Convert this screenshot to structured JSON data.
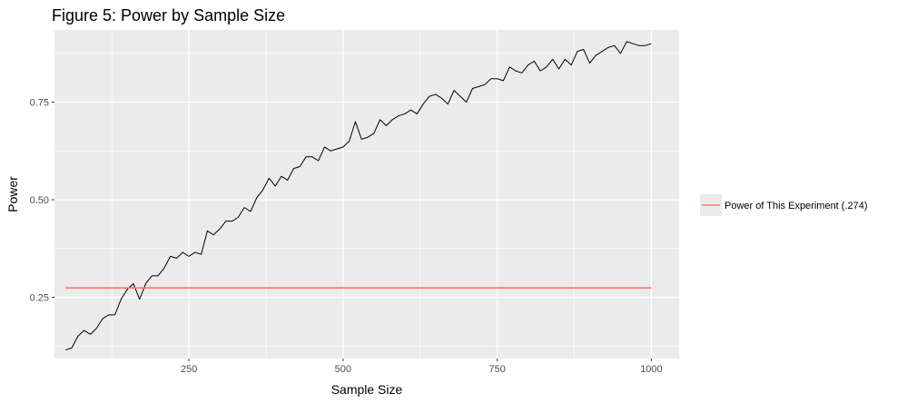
{
  "chart_data": {
    "type": "line",
    "title": "Figure 5: Power by Sample Size",
    "xlabel": "Sample Size",
    "ylabel": "Power",
    "xlim": [
      32,
      1045
    ],
    "ylim": [
      0.093,
      0.935
    ],
    "x_ticks": [
      250,
      500,
      750,
      1000
    ],
    "x_tick_labels": [
      "250",
      "500",
      "750",
      "1000"
    ],
    "y_ticks": [
      0.25,
      0.5,
      0.75
    ],
    "y_tick_labels": [
      "0.25",
      "0.50",
      "0.75"
    ],
    "grid": true,
    "legend_position": "right",
    "series": [
      {
        "color": "#000000",
        "x": [
          50,
          60,
          70,
          80,
          90,
          100,
          110,
          120,
          130,
          140,
          150,
          160,
          170,
          180,
          190,
          200,
          210,
          220,
          230,
          240,
          250,
          260,
          270,
          280,
          290,
          300,
          310,
          320,
          330,
          340,
          350,
          360,
          370,
          380,
          390,
          400,
          410,
          420,
          430,
          440,
          450,
          460,
          470,
          480,
          490,
          500,
          510,
          520,
          530,
          540,
          550,
          560,
          570,
          580,
          590,
          600,
          610,
          620,
          630,
          640,
          650,
          660,
          670,
          680,
          690,
          700,
          710,
          720,
          730,
          740,
          750,
          760,
          770,
          780,
          790,
          800,
          810,
          820,
          830,
          840,
          850,
          860,
          870,
          880,
          890,
          900,
          910,
          920,
          930,
          940,
          950,
          960,
          970,
          980,
          990,
          1000
        ],
        "values": [
          0.115,
          0.12,
          0.15,
          0.165,
          0.155,
          0.17,
          0.195,
          0.205,
          0.205,
          0.245,
          0.27,
          0.285,
          0.245,
          0.285,
          0.305,
          0.305,
          0.325,
          0.355,
          0.35,
          0.365,
          0.355,
          0.365,
          0.36,
          0.42,
          0.41,
          0.425,
          0.445,
          0.445,
          0.455,
          0.48,
          0.47,
          0.505,
          0.525,
          0.555,
          0.535,
          0.56,
          0.55,
          0.58,
          0.585,
          0.61,
          0.61,
          0.6,
          0.635,
          0.625,
          0.63,
          0.635,
          0.65,
          0.7,
          0.655,
          0.66,
          0.67,
          0.705,
          0.69,
          0.705,
          0.715,
          0.72,
          0.73,
          0.72,
          0.745,
          0.765,
          0.77,
          0.76,
          0.745,
          0.78,
          0.765,
          0.75,
          0.785,
          0.79,
          0.795,
          0.81,
          0.81,
          0.805,
          0.84,
          0.83,
          0.825,
          0.845,
          0.855,
          0.83,
          0.84,
          0.86,
          0.835,
          0.86,
          0.845,
          0.88,
          0.885,
          0.85,
          0.87,
          0.88,
          0.89,
          0.895,
          0.875,
          0.905,
          0.9,
          0.895,
          0.895,
          0.9
        ]
      },
      {
        "name": "Power of This Experiment (.274)",
        "color": "#F8766D",
        "x": [
          50,
          1000
        ],
        "values": [
          0.274,
          0.274
        ]
      }
    ]
  }
}
